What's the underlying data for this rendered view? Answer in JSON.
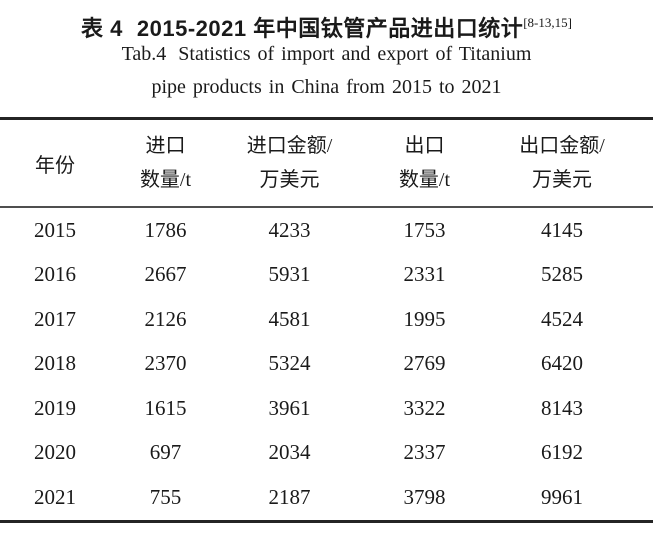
{
  "page": {
    "background": "#ffffff",
    "text_color": "#1a1a1a",
    "rule_color": "#242424",
    "mid_rule_color": "#4f4f4f"
  },
  "title": {
    "zh_label": "表 4",
    "zh_text": "2015-2021 年中国钛管产品进出口统计",
    "citation": "[8-13,15]",
    "en_label": "Tab.4",
    "en_line1": "Statistics of import and export of Titanium",
    "en_line2": "pipe products in China from 2015 to 2021"
  },
  "chart_data": {
    "type": "table",
    "title": "表 4 2015-2021 年中国钛管产品进出口统计 / Tab.4 Statistics of import and export of Titanium pipe products in China from 2015 to 2021",
    "columns": [
      {
        "line1": "年份",
        "line2": ""
      },
      {
        "line1": "进口",
        "line2": "数量/t"
      },
      {
        "line1": "进口金额/",
        "line2": "万美元"
      },
      {
        "line1": "出口",
        "line2": "数量/t"
      },
      {
        "line1": "出口金额/",
        "line2": "万美元"
      }
    ],
    "rows": [
      [
        "2015",
        "1786",
        "4233",
        "1753",
        "4145"
      ],
      [
        "2016",
        "2667",
        "5931",
        "2331",
        "5285"
      ],
      [
        "2017",
        "2126",
        "4581",
        "1995",
        "4524"
      ],
      [
        "2018",
        "2370",
        "5324",
        "2769",
        "6420"
      ],
      [
        "2019",
        "1615",
        "3961",
        "3322",
        "8143"
      ],
      [
        "2020",
        "697",
        "2034",
        "2337",
        "6192"
      ],
      [
        "2021",
        "755",
        "2187",
        "3798",
        "9961"
      ]
    ]
  }
}
